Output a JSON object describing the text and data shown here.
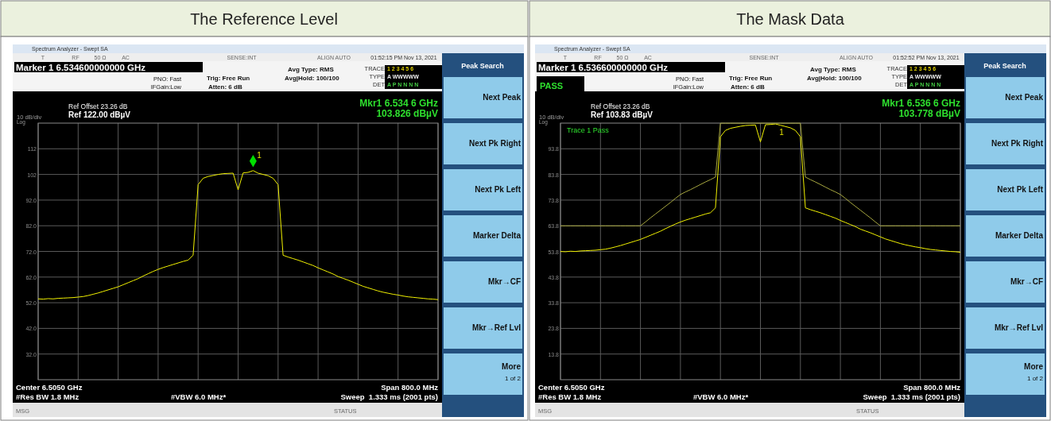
{
  "chart_data": [
    {
      "type": "line",
      "title": "The Reference Level",
      "categories": [
        null,
        null,
        null,
        null,
        null,
        null,
        null,
        null,
        null,
        null,
        null,
        null,
        null,
        null,
        null,
        null,
        null,
        null,
        null,
        null,
        null,
        null,
        null,
        null,
        null,
        null,
        null,
        null,
        null,
        null,
        null,
        null,
        null,
        null,
        null,
        null,
        null,
        null,
        null,
        null,
        null,
        null,
        null,
        null,
        null,
        null,
        null,
        null,
        null,
        null,
        null,
        null,
        null,
        null,
        null,
        null,
        null,
        null,
        null,
        null,
        null,
        null,
        null,
        null,
        null,
        null,
        null,
        null,
        null,
        null,
        null,
        null,
        null,
        null,
        null,
        null,
        null,
        null,
        null,
        null,
        null
      ],
      "ylim": [
        22,
        122
      ],
      "yticks": [
        {
          "value": 32,
          "label": "32.0"
        },
        {
          "value": 42,
          "label": "42.0"
        },
        {
          "value": 52,
          "label": "52.0"
        },
        {
          "value": 62,
          "label": "62.0"
        },
        {
          "value": 72,
          "label": "72.0"
        },
        {
          "value": 82,
          "label": "82.0"
        },
        {
          "value": 92,
          "label": "92.0"
        },
        102,
        112
      ],
      "grid": true,
      "tick_labels": "y",
      "series": [
        {
          "color": "#f2f200",
          "values": [
            53.5,
            53.4,
            53.6,
            53.5,
            53.7,
            53.8,
            53.9,
            54.0,
            54.2,
            54.4,
            54.8,
            55.3,
            55.8,
            56.4,
            57.0,
            57.6,
            58.2,
            59.0,
            59.8,
            60.6,
            61.4,
            62.4,
            63.3,
            64.2,
            65.0,
            65.7,
            66.3,
            66.9,
            67.5,
            68.1,
            68.6,
            70.5,
            98.0,
            100.5,
            101.2,
            101.6,
            102.0,
            102.3,
            102.4,
            102.5,
            96.0,
            102.6,
            102.8,
            103.5,
            102.5,
            102.0,
            101.5,
            100.5,
            98.0,
            70.5,
            69.8,
            69.2,
            68.6,
            67.9,
            67.2,
            66.5,
            65.6,
            64.8,
            64.0,
            63.2,
            62.2,
            61.5,
            60.8,
            60.0,
            59.2,
            58.4,
            57.8,
            57.2,
            56.6,
            56.1,
            55.7,
            55.3,
            55.0,
            54.6,
            54.3,
            54.1,
            53.9,
            53.7,
            53.5,
            53.4,
            53.2
          ]
        }
      ],
      "annotations": [
        "Spectrum Analyzer - Swept SA",
        "T",
        "RF",
        "50 Ω",
        "AC",
        "SENSE:INT",
        "ALIGN AUTO",
        "01:52:15 PM Nov 13, 2021",
        "Marker 1 6.534600000000 GHz",
        "PNO: Fast",
        "IFGain:Low",
        "Trig: Free Run",
        "Atten: 6 dB",
        "Avg Type: RMS",
        "Avg|Hold: 100/100",
        "TRACE",
        "TYPE",
        "DET",
        "1 2 3 4 5 6",
        "A WWWWW",
        "A P N N N N",
        "Ref Offset 23.26 dB",
        "Ref 122.00 dBµV",
        "10 dB/div",
        "Log",
        "Mkr1 6.534 6 GHz",
        "103.826 dBµV",
        "Center 6.5050 GHz",
        "Span 800.0 MHz",
        "#Res BW 1.8 MHz",
        "#VBW 6.0 MHz*",
        "Sweep  1.333 ms (2001 pts)",
        "MSG",
        "STATUS",
        "Peak Search",
        "Next Peak",
        "Next Pk Right",
        "Next Pk Left",
        "Marker Delta",
        "Mkr→CF",
        "Mkr→Ref Lvl",
        "More",
        "1 of 2",
        "1"
      ]
    },
    {
      "type": "line",
      "title": "The Mask Data",
      "categories": [
        null,
        null,
        null,
        null,
        null,
        null,
        null,
        null,
        null,
        null,
        null,
        null,
        null,
        null,
        null,
        null,
        null,
        null,
        null,
        null,
        null,
        null,
        null,
        null,
        null,
        null,
        null,
        null,
        null,
        null,
        null,
        null,
        null,
        null,
        null,
        null,
        null,
        null,
        null,
        null,
        null,
        null,
        null,
        null,
        null,
        null,
        null,
        null,
        null,
        null,
        null,
        null,
        null,
        null,
        null,
        null,
        null,
        null,
        null,
        null,
        null,
        null,
        null,
        null,
        null,
        null,
        null,
        null,
        null,
        null,
        null,
        null,
        null,
        null,
        null,
        null,
        null,
        null,
        null,
        null,
        null
      ],
      "ylim": [
        3.83,
        103.83
      ],
      "yticks": [
        {
          "value": 13.83,
          "label": "13.8"
        },
        {
          "value": 23.83,
          "label": "23.8"
        },
        {
          "value": 33.83,
          "label": "33.8"
        },
        {
          "value": 43.83,
          "label": "43.8"
        },
        {
          "value": 53.83,
          "label": "53.8"
        },
        {
          "value": 63.83,
          "label": "63.8"
        },
        {
          "value": 73.83,
          "label": "73.8"
        },
        {
          "value": 83.83,
          "label": "83.8"
        },
        {
          "value": 93.83,
          "label": "93.8"
        }
      ],
      "grid": true,
      "tick_labels": "y",
      "series": [
        {
          "color": "#f2f200",
          "values": [
            53.8,
            53.7,
            53.9,
            53.8,
            54.0,
            54.1,
            54.2,
            54.3,
            54.5,
            54.7,
            55.1,
            55.6,
            56.1,
            56.7,
            57.3,
            57.9,
            58.5,
            59.3,
            60.1,
            60.9,
            61.7,
            62.7,
            63.6,
            64.5,
            65.3,
            66.0,
            66.6,
            67.2,
            67.8,
            68.4,
            68.9,
            70.8,
            98.5,
            101.0,
            101.8,
            102.2,
            102.6,
            102.9,
            103.0,
            103.1,
            96.5,
            103.2,
            103.3,
            103.5,
            103.0,
            102.5,
            102.0,
            101.0,
            98.5,
            70.8,
            70.1,
            69.5,
            68.9,
            68.2,
            67.5,
            66.8,
            65.9,
            65.1,
            64.3,
            63.5,
            62.5,
            61.8,
            61.1,
            60.3,
            59.5,
            58.7,
            58.1,
            57.5,
            56.9,
            56.4,
            56.0,
            55.6,
            55.3,
            54.9,
            54.6,
            54.4,
            54.2,
            54.0,
            53.8,
            53.7,
            53.5
          ]
        },
        {
          "color": "#a8a840",
          "values": [
            63.8,
            63.8,
            63.8,
            63.8,
            63.8,
            63.8,
            63.8,
            63.8,
            63.8,
            63.8,
            63.8,
            63.8,
            63.8,
            63.8,
            63.8,
            63.8,
            63.8,
            65.3,
            66.9,
            68.4,
            69.9,
            71.4,
            72.9,
            74.5,
            76.0,
            77.0,
            77.9,
            78.9,
            79.9,
            80.9,
            81.8,
            82.8,
            103.8,
            103.8,
            103.8,
            103.8,
            103.8,
            103.8,
            103.8,
            103.8,
            103.8,
            103.8,
            103.8,
            103.8,
            103.8,
            103.8,
            103.8,
            103.8,
            103.8,
            82.8,
            81.8,
            80.9,
            79.9,
            78.9,
            77.9,
            77.0,
            76.0,
            74.5,
            72.9,
            71.4,
            69.9,
            68.4,
            66.9,
            65.3,
            63.8,
            63.8,
            63.8,
            63.8,
            63.8,
            63.8,
            63.8,
            63.8,
            63.8,
            63.8,
            63.8,
            63.8,
            63.8,
            63.8,
            63.8,
            63.8,
            63.8
          ]
        }
      ],
      "annotations": [
        "Spectrum Analyzer - Swept SA",
        "T",
        "RF",
        "50 Ω",
        "AC",
        "SENSE:INT",
        "ALIGN AUTO",
        "01:52:52 PM Nov 13, 2021",
        "Marker 1 6.536600000000 GHz",
        "PNO: Fast",
        "IFGain:Low",
        "Trig: Free Run",
        "Atten: 6 dB",
        "Avg Type: RMS",
        "Avg|Hold: 100/100",
        "TRACE",
        "TYPE",
        "DET",
        "1 2 3 4 5 6",
        "A WWWWW",
        "A P N N N N",
        "Ref Offset 23.26 dB",
        "Ref 103.83 dBµV",
        "10 dB/div",
        "Log",
        "Mkr1 6.536 6 GHz",
        "103.778 dBµV",
        "Center 6.5050 GHz",
        "Span 800.0 MHz",
        "#Res BW 1.8 MHz",
        "#VBW 6.0 MHz*",
        "Sweep  1.333 ms (2001 pts)",
        "MSG",
        "STATUS",
        "Peak Search",
        "Next Peak",
        "Next Pk Right",
        "Next Pk Left",
        "Marker Delta",
        "Mkr→CF",
        "Mkr→Ref Lvl",
        "More",
        "1 of 2",
        "1",
        "PASS",
        "Trace 1 Pass"
      ]
    }
  ]
}
